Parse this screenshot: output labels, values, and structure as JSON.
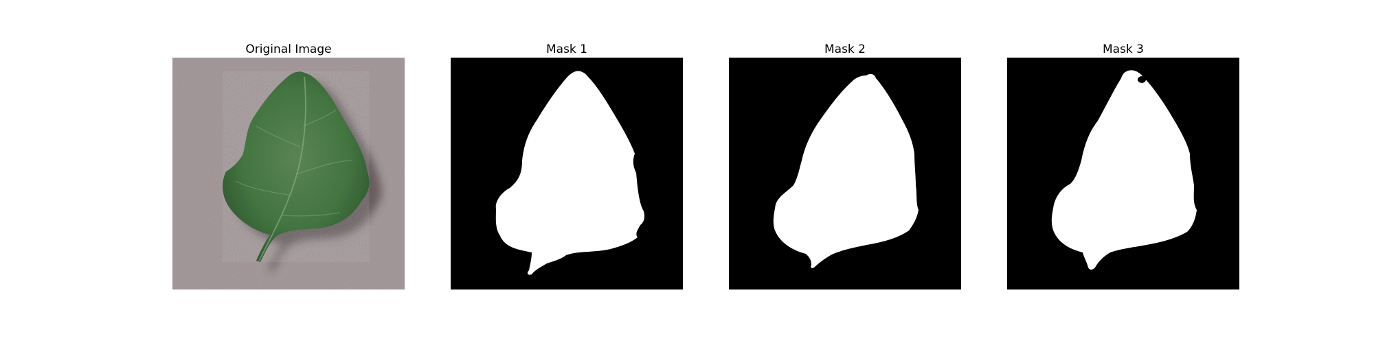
{
  "figure": {
    "panels": [
      {
        "title": "Original Image"
      },
      {
        "title": "Mask 1"
      },
      {
        "title": "Mask 2"
      },
      {
        "title": "Mask 3"
      }
    ]
  },
  "colors": {
    "background_texture": "#a89c9e",
    "leaf_green": "#4a7a45",
    "leaf_dark": "#2f5a30",
    "mask_background": "#000000",
    "mask_foreground": "#ffffff"
  }
}
